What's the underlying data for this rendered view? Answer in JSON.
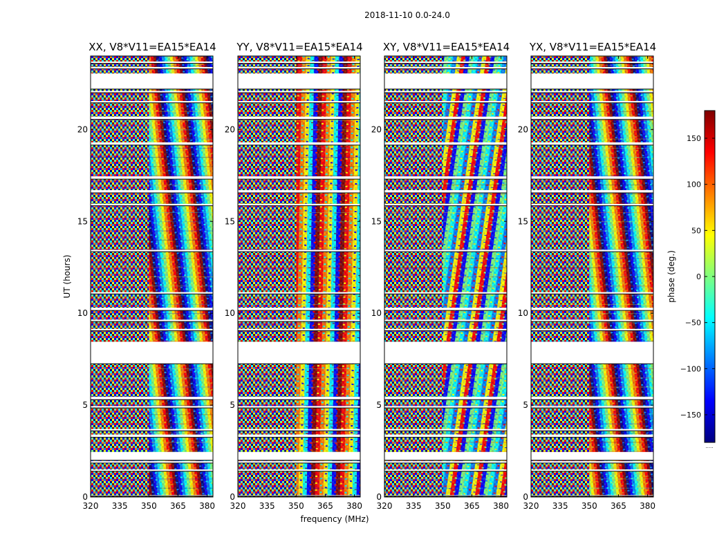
{
  "chart_data": {
    "type": "heatmap",
    "title": "2018-11-10 0.0-24.0",
    "xlabel": "frequency (MHz)",
    "ylabel": "UT (hours)",
    "xlim": [
      320,
      383
    ],
    "ylim": [
      0,
      24
    ],
    "xticks": [
      320,
      335,
      350,
      365,
      380
    ],
    "yticks": [
      0,
      5,
      10,
      15,
      20
    ],
    "panels": [
      {
        "title": "XX, V8*V11=EA15*EA14",
        "pol": "XX"
      },
      {
        "title": "YY, V8*V11=EA15*EA14",
        "pol": "YY"
      },
      {
        "title": "XY, V8*V11=EA15*EA14",
        "pol": "XY"
      },
      {
        "title": "YX, V8*V11=EA15*EA14",
        "pol": "YX"
      }
    ],
    "colorbar": {
      "label": "phase (deg.)",
      "range": [
        -180,
        180
      ],
      "ticks": [
        -150,
        -100,
        -50,
        0,
        50,
        100,
        150
      ],
      "colormap": "jet",
      "colors": [
        "#00007f",
        "#0000ff",
        "#007fff",
        "#00ffff",
        "#7fff7f",
        "#ffff00",
        "#ff7f00",
        "#ff0000",
        "#7f0000"
      ]
    },
    "flagged_gaps_hours": [
      [
        0.05,
        0.1
      ],
      [
        1.4,
        1.5
      ],
      [
        1.85,
        1.95
      ],
      [
        2.0,
        2.45
      ],
      [
        3.25,
        3.4
      ],
      [
        3.6,
        3.7
      ],
      [
        4.85,
        4.95
      ],
      [
        5.3,
        5.45
      ],
      [
        7.25,
        8.45
      ],
      [
        9.05,
        9.15
      ],
      [
        9.55,
        9.65
      ],
      [
        10.15,
        10.3
      ],
      [
        11.05,
        11.15
      ],
      [
        13.35,
        13.45
      ],
      [
        15.85,
        15.95
      ],
      [
        16.55,
        16.7
      ],
      [
        17.3,
        17.45
      ],
      [
        19.15,
        19.3
      ],
      [
        20.55,
        20.7
      ],
      [
        21.45,
        21.55
      ],
      [
        22.0,
        22.1
      ],
      [
        22.2,
        23.05
      ],
      [
        23.3,
        23.4
      ],
      [
        23.6,
        23.7
      ]
    ]
  },
  "colorbar_footer": "....."
}
